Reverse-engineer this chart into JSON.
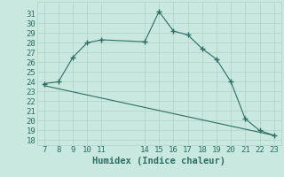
{
  "xlabel": "Humidex (Indice chaleur)",
  "x_ticks": [
    7,
    8,
    9,
    10,
    11,
    14,
    15,
    16,
    17,
    18,
    19,
    20,
    21,
    22,
    23
  ],
  "line1_x": [
    7,
    8,
    9,
    10,
    11,
    14,
    15,
    16,
    17,
    18,
    19,
    20,
    21,
    22,
    23
  ],
  "line1_y": [
    23.8,
    24.0,
    26.5,
    28.0,
    28.3,
    28.1,
    31.2,
    29.2,
    28.8,
    27.4,
    26.3,
    24.0,
    20.2,
    19.0,
    18.5
  ],
  "line2_x": [
    7,
    23
  ],
  "line2_y": [
    23.6,
    18.5
  ],
  "line_color": "#2d6e63",
  "bg_color": "#c8e8e0",
  "grid_color": "#b0d0c8",
  "ylim": [
    17.5,
    32.2
  ],
  "xlim": [
    6.5,
    23.5
  ],
  "yticks": [
    18,
    19,
    20,
    21,
    22,
    23,
    24,
    25,
    26,
    27,
    28,
    29,
    30,
    31
  ],
  "xlabel_fontsize": 7.5,
  "tick_fontsize": 6.5
}
